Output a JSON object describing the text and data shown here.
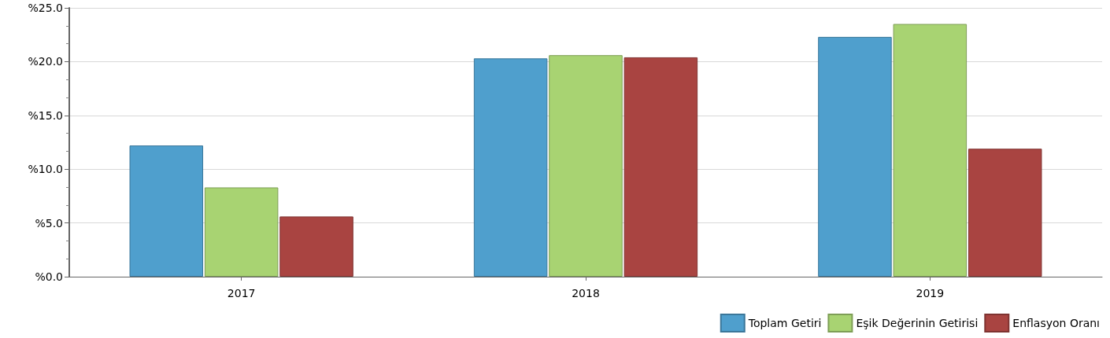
{
  "chart_data": {
    "type": "bar",
    "categories": [
      "2017",
      "2018",
      "2019"
    ],
    "series": [
      {
        "name": "Toplam Getiri",
        "color": "#4f9fcd",
        "values": [
          12.2,
          20.3,
          22.3
        ]
      },
      {
        "name": "Eşik Değerinin Getirisi",
        "color": "#a8d372",
        "values": [
          8.3,
          20.6,
          23.5
        ]
      },
      {
        "name": "Enflasyon Oranı",
        "color": "#a94441",
        "values": [
          5.6,
          20.4,
          11.9
        ]
      }
    ],
    "ylim": [
      0,
      25
    ],
    "yticks": [
      {
        "value": 0,
        "label": "%0.0"
      },
      {
        "value": 5,
        "label": "%5.0"
      },
      {
        "value": 10,
        "label": "%10.0"
      },
      {
        "value": 15,
        "label": "%15.0"
      },
      {
        "value": 20,
        "label": "%20.0"
      },
      {
        "value": 25,
        "label": "%25.0"
      }
    ],
    "grid": "y",
    "legend": "bottom right"
  }
}
